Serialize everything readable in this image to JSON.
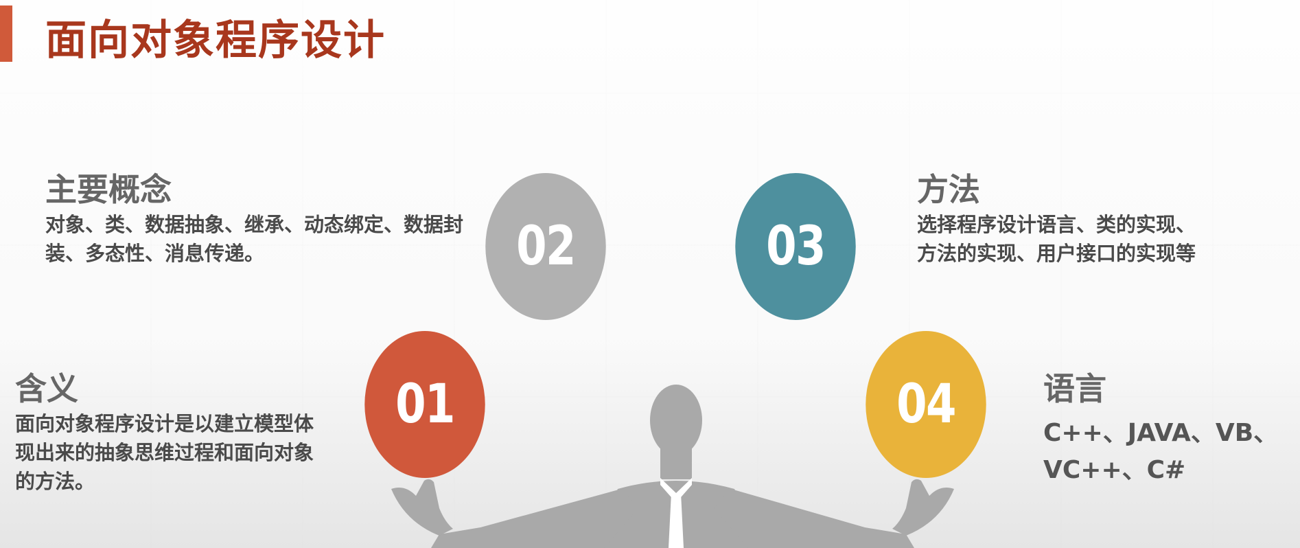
{
  "title": "面向对象程序设计",
  "items": [
    {
      "number": "01",
      "heading": "含义",
      "text": "面向对象程序设计是以建立模型体现出来的抽象思维过程和面向对象的方法。",
      "color": "#d0583b"
    },
    {
      "number": "02",
      "heading": "主要概念",
      "text": "对象、类、数据抽象、继承、动态绑定、数据封装、多态性、消息传递。",
      "color": "#b1b1b1"
    },
    {
      "number": "03",
      "heading": "方法",
      "text": "选择程序设计语言、类的实现、方法的实现、用户接口的实现等",
      "color": "#4e909e"
    },
    {
      "number": "04",
      "heading": "语言",
      "text": "C++、JAVA、VB、VC++、C#",
      "color": "#e9b33a"
    }
  ],
  "colors": {
    "accent": "#a8371d",
    "accent_bar": "#d05a3a",
    "figure": "#a9a9a9"
  }
}
